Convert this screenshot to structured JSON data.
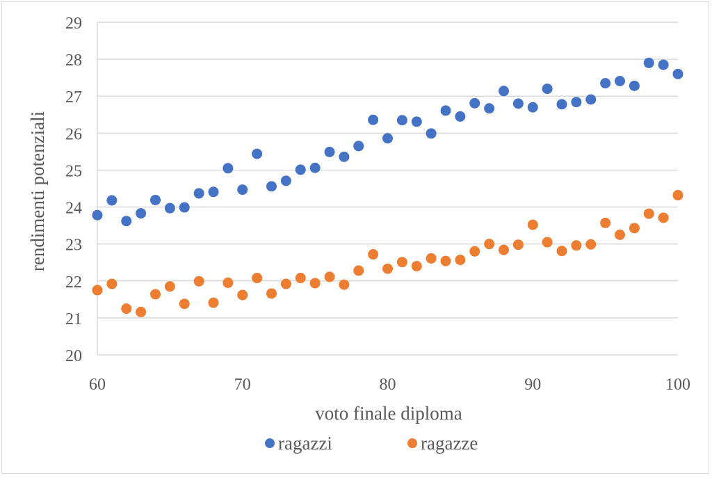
{
  "chart_data": {
    "type": "scatter",
    "title": "",
    "xlabel": "voto finale diploma",
    "ylabel": "rendimenti potenziali",
    "xlim": [
      60,
      100
    ],
    "ylim": [
      20,
      29
    ],
    "xticks": [
      60,
      70,
      80,
      90,
      100
    ],
    "yticks": [
      20,
      21,
      22,
      23,
      24,
      25,
      26,
      27,
      28,
      29
    ],
    "grid": "horizontal",
    "legend_position": "bottom",
    "x": [
      60,
      61,
      62,
      63,
      64,
      65,
      66,
      67,
      68,
      69,
      70,
      71,
      72,
      73,
      74,
      75,
      76,
      77,
      78,
      79,
      80,
      81,
      82,
      83,
      84,
      85,
      86,
      87,
      88,
      89,
      90,
      91,
      92,
      93,
      94,
      95,
      96,
      97,
      98,
      99,
      100
    ],
    "series": [
      {
        "name": "ragazzi",
        "color": "#4472c4",
        "values": [
          23.78,
          24.18,
          23.62,
          23.83,
          24.19,
          23.97,
          23.99,
          24.37,
          24.41,
          25.05,
          24.47,
          25.44,
          24.56,
          24.71,
          25.01,
          25.06,
          25.49,
          25.36,
          25.65,
          26.36,
          25.86,
          26.35,
          26.31,
          25.99,
          26.61,
          26.45,
          26.81,
          26.67,
          27.14,
          26.8,
          26.7,
          27.2,
          26.78,
          26.84,
          26.91,
          27.35,
          27.41,
          27.28,
          27.9,
          27.85,
          27.6
        ]
      },
      {
        "name": "ragazze",
        "color": "#ed7d31",
        "values": [
          21.75,
          21.92,
          21.25,
          21.16,
          21.64,
          21.85,
          21.38,
          21.99,
          21.41,
          21.95,
          21.62,
          22.08,
          21.66,
          21.92,
          22.08,
          21.94,
          22.11,
          21.9,
          22.28,
          22.72,
          22.33,
          22.51,
          22.4,
          22.61,
          22.54,
          22.57,
          22.8,
          23.0,
          22.84,
          22.98,
          23.52,
          23.05,
          22.81,
          22.96,
          22.99,
          23.57,
          23.25,
          23.43,
          23.82,
          23.71,
          24.32
        ]
      }
    ]
  }
}
